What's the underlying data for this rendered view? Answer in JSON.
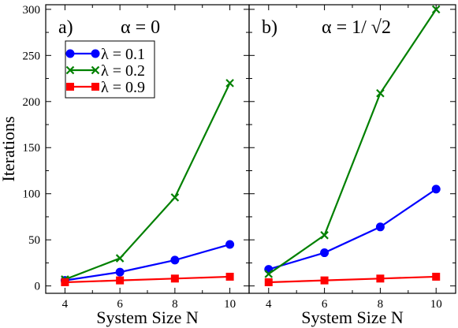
{
  "chart_data": [
    {
      "type": "line",
      "panel_label": "a)",
      "title": "α = 0",
      "xlabel": "System Size N",
      "ylabel": "Iterations",
      "xlim": [
        3.3,
        10.7
      ],
      "ylim": [
        -8,
        305
      ],
      "xticks": [
        4,
        6,
        8,
        10
      ],
      "yticks": [
        0,
        50,
        100,
        150,
        200,
        250,
        300
      ],
      "legend": {
        "position": "upper-left",
        "entries": [
          "λ = 0.1",
          "λ = 0.2",
          "λ = 0.9"
        ]
      },
      "series": [
        {
          "name": "λ = 0.1",
          "color": "#0000ff",
          "marker": "circle",
          "x": [
            4,
            6,
            8,
            10
          ],
          "values": [
            6,
            15,
            28,
            45
          ]
        },
        {
          "name": "λ = 0.2",
          "color": "#008000",
          "marker": "x",
          "x": [
            4,
            6,
            8,
            10
          ],
          "values": [
            7,
            30,
            96,
            220
          ]
        },
        {
          "name": "λ = 0.9",
          "color": "#ff0000",
          "marker": "square",
          "x": [
            4,
            6,
            8,
            10
          ],
          "values": [
            4,
            6,
            8,
            10
          ]
        }
      ]
    },
    {
      "type": "line",
      "panel_label": "b)",
      "title": "α = 1/ √2",
      "xlabel": "System Size N",
      "ylabel": "",
      "xlim": [
        3.3,
        10.7
      ],
      "ylim": [
        -8,
        305
      ],
      "xticks": [
        4,
        6,
        8,
        10
      ],
      "yticks": [
        0,
        50,
        100,
        150,
        200,
        250,
        300
      ],
      "series": [
        {
          "name": "λ = 0.1",
          "color": "#0000ff",
          "marker": "circle",
          "x": [
            4,
            6,
            8,
            10
          ],
          "values": [
            18,
            36,
            64,
            105
          ]
        },
        {
          "name": "λ = 0.2",
          "color": "#008000",
          "marker": "x",
          "x": [
            4,
            6,
            8,
            10
          ],
          "values": [
            13,
            55,
            209,
            300
          ]
        },
        {
          "name": "λ = 0.9",
          "color": "#ff0000",
          "marker": "square",
          "x": [
            4,
            6,
            8,
            10
          ],
          "values": [
            4,
            6,
            8,
            10
          ]
        }
      ]
    }
  ]
}
